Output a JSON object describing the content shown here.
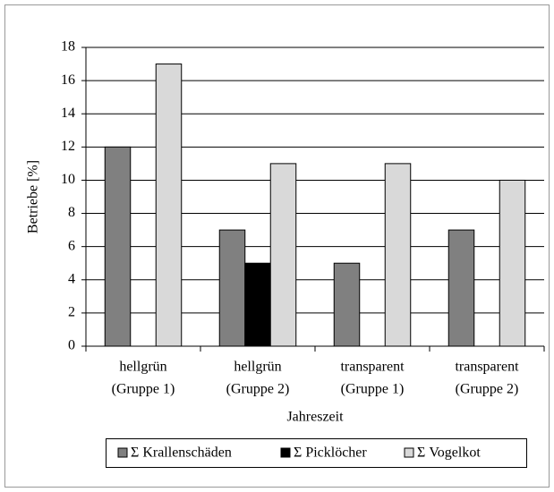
{
  "chart_data": {
    "type": "bar",
    "x_label": "Jahreszeit",
    "y_label": "Betriebe [%]",
    "categories": [
      [
        "hellgrün",
        "(Gruppe 1)"
      ],
      [
        "hellgrün",
        "(Gruppe 2)"
      ],
      [
        "transparent",
        "(Gruppe 1)"
      ],
      [
        "transparent",
        "(Gruppe 2)"
      ]
    ],
    "series": [
      {
        "name": "Σ Krallenschäden",
        "color": "#808080",
        "values": [
          12,
          7,
          5,
          7
        ]
      },
      {
        "name": "Σ Picklöcher",
        "color": "#000000",
        "values": [
          0,
          5,
          0,
          0
        ]
      },
      {
        "name": "Σ Vogelkot",
        "color": "#d9d9d9",
        "values": [
          17,
          11,
          11,
          10
        ]
      }
    ],
    "ylim": [
      0,
      18
    ],
    "yticks": [
      0,
      2,
      4,
      6,
      8,
      10,
      12,
      14,
      16,
      18
    ],
    "grid": true,
    "legend": "bottom"
  }
}
